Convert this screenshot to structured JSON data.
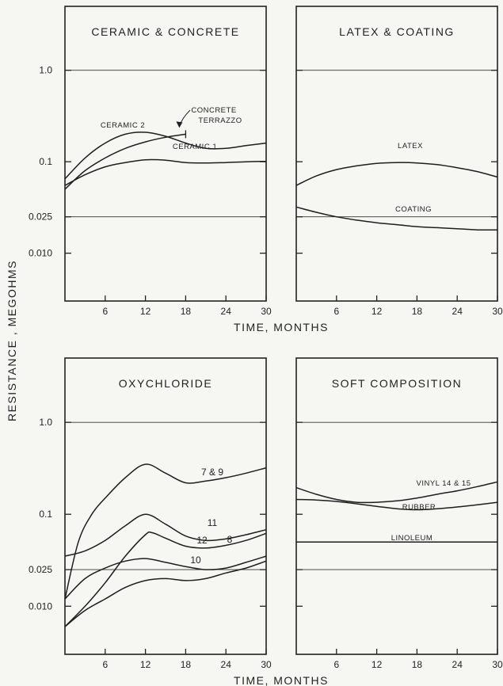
{
  "y_axis_label": "RESISTANCE ,  MEGOHMS",
  "x_axis_label": "TIME,   MONTHS",
  "chart_data": [
    {
      "type": "line",
      "title": "CERAMIC & CONCRETE",
      "xlim": [
        0,
        30
      ],
      "ylim": [
        0.003,
        5
      ],
      "yscale": "log",
      "xticks": [
        "6",
        "12",
        "18",
        "24",
        "30"
      ],
      "yticks": [
        {
          "label": "1.0",
          "value": 1.0
        },
        {
          "label": "0.1",
          "value": 0.1
        },
        {
          "label": "0.025",
          "value": 0.025
        },
        {
          "label": "0.010",
          "value": 0.01
        }
      ],
      "reference_lines": [
        1.0,
        0.025
      ],
      "series": [
        {
          "name": "CERAMIC 2",
          "x": [
            0,
            3,
            6,
            9,
            12,
            15,
            18,
            21,
            24,
            27,
            30
          ],
          "y": [
            0.065,
            0.11,
            0.16,
            0.2,
            0.21,
            0.19,
            0.16,
            0.14,
            0.14,
            0.15,
            0.16
          ]
        },
        {
          "name": "CONCRETE TERRAZZO",
          "x": [
            0,
            3,
            6,
            9,
            12,
            15,
            18
          ],
          "y": [
            0.05,
            0.08,
            0.11,
            0.14,
            0.165,
            0.185,
            0.2
          ]
        },
        {
          "name": "CERAMIC 1",
          "x": [
            0,
            3,
            6,
            9,
            12,
            15,
            18,
            21,
            24,
            27,
            30
          ],
          "y": [
            0.055,
            0.072,
            0.088,
            0.098,
            0.105,
            0.104,
            0.098,
            0.097,
            0.098,
            0.1,
            0.101
          ]
        }
      ]
    },
    {
      "type": "line",
      "title": "LATEX & COATING",
      "xlim": [
        0,
        30
      ],
      "ylim": [
        0.003,
        5
      ],
      "yscale": "log",
      "xticks": [
        "6",
        "12",
        "18",
        "24",
        "30"
      ],
      "reference_lines": [
        1.0,
        0.025
      ],
      "series": [
        {
          "name": "LATEX",
          "x": [
            0,
            3,
            6,
            9,
            12,
            15,
            18,
            21,
            24,
            27,
            30
          ],
          "y": [
            0.055,
            0.07,
            0.082,
            0.09,
            0.096,
            0.098,
            0.097,
            0.093,
            0.086,
            0.078,
            0.068
          ]
        },
        {
          "name": "COATING",
          "x": [
            0,
            3,
            6,
            9,
            12,
            15,
            18,
            21,
            24,
            27,
            30
          ],
          "y": [
            0.032,
            0.028,
            0.025,
            0.023,
            0.0215,
            0.0205,
            0.0195,
            0.019,
            0.0185,
            0.018,
            0.018
          ]
        }
      ]
    },
    {
      "type": "line",
      "title": "OXYCHLORIDE",
      "xlim": [
        0,
        30
      ],
      "ylim": [
        0.003,
        5
      ],
      "yscale": "log",
      "xticks": [
        "6",
        "12",
        "18",
        "24",
        "30"
      ],
      "yticks": [
        {
          "label": "1.0",
          "value": 1.0
        },
        {
          "label": "0.1",
          "value": 0.1
        },
        {
          "label": "0.025",
          "value": 0.025
        },
        {
          "label": "0.010",
          "value": 0.01
        }
      ],
      "reference_lines": [
        1.0,
        0.025
      ],
      "series": [
        {
          "name": "7 & 9",
          "x": [
            0,
            2,
            4,
            6,
            9,
            12,
            15,
            18,
            21,
            24,
            27,
            30
          ],
          "y": [
            0.012,
            0.05,
            0.1,
            0.15,
            0.25,
            0.35,
            0.28,
            0.22,
            0.23,
            0.25,
            0.28,
            0.32
          ]
        },
        {
          "name": "11",
          "x": [
            0,
            3,
            6,
            9,
            12,
            15,
            18,
            21,
            24,
            27,
            30
          ],
          "y": [
            0.035,
            0.04,
            0.052,
            0.075,
            0.1,
            0.078,
            0.058,
            0.052,
            0.054,
            0.06,
            0.068
          ]
        },
        {
          "name": "8",
          "x": [
            0,
            3,
            6,
            9,
            12,
            13,
            15,
            18,
            21,
            24,
            27,
            30
          ],
          "y": [
            0.006,
            0.01,
            0.018,
            0.035,
            0.06,
            0.063,
            0.055,
            0.045,
            0.043,
            0.046,
            0.052,
            0.062
          ]
        },
        {
          "name": "12",
          "x": [
            0,
            3,
            6,
            9,
            12,
            15,
            18,
            21,
            24,
            27,
            30
          ],
          "y": [
            0.012,
            0.02,
            0.026,
            0.031,
            0.033,
            0.03,
            0.027,
            0.025,
            0.026,
            0.03,
            0.035
          ]
        },
        {
          "name": "10",
          "x": [
            0,
            3,
            6,
            9,
            12,
            15,
            18,
            21,
            24,
            27,
            30
          ],
          "y": [
            0.006,
            0.009,
            0.012,
            0.016,
            0.019,
            0.02,
            0.019,
            0.02,
            0.023,
            0.026,
            0.031
          ]
        }
      ]
    },
    {
      "type": "line",
      "title": "SOFT  COMPOSITION",
      "xlim": [
        0,
        30
      ],
      "ylim": [
        0.003,
        5
      ],
      "yscale": "log",
      "xticks": [
        "6",
        "12",
        "18",
        "24",
        "30"
      ],
      "reference_lines": [
        1.0,
        0.025
      ],
      "series": [
        {
          "name": "VINYL 14 & 15",
          "x": [
            0,
            3,
            6,
            9,
            12,
            15,
            18,
            21,
            24,
            27,
            30
          ],
          "y": [
            0.195,
            0.165,
            0.145,
            0.135,
            0.135,
            0.14,
            0.15,
            0.165,
            0.18,
            0.2,
            0.225
          ]
        },
        {
          "name": "RUBBER",
          "x": [
            0,
            3,
            6,
            9,
            12,
            15,
            18,
            21,
            24,
            27,
            30
          ],
          "y": [
            0.145,
            0.143,
            0.138,
            0.13,
            0.122,
            0.115,
            0.112,
            0.115,
            0.12,
            0.127,
            0.135
          ]
        },
        {
          "name": "LINOLEUM",
          "x": [
            0,
            30
          ],
          "y": [
            0.05,
            0.05
          ]
        }
      ]
    }
  ]
}
